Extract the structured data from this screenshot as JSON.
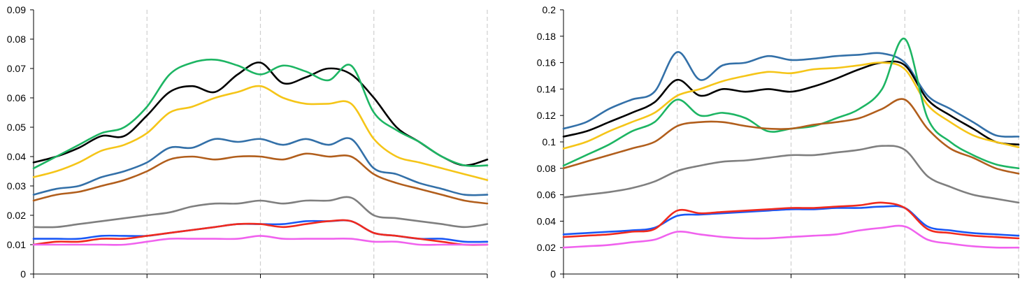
{
  "chart_data": [
    {
      "type": "line",
      "title": "",
      "xlabel": "",
      "ylabel": "",
      "ylim": [
        0,
        0.09
      ],
      "yticks": [
        "0",
        "0.01",
        "0.02",
        "0.03",
        "0.04",
        "0.05",
        "0.06",
        "0.07",
        "0.08",
        "0.09"
      ],
      "ytick_values": [
        0,
        0.01,
        0.02,
        0.03,
        0.04,
        0.05,
        0.06,
        0.07,
        0.08,
        0.09
      ],
      "xlim": [
        0,
        80
      ],
      "x_dividers": [
        20,
        40,
        60
      ],
      "grid": "vertical dashed",
      "x": [
        0,
        4,
        8,
        12,
        16,
        20,
        24,
        28,
        32,
        36,
        40,
        44,
        48,
        52,
        56,
        60,
        64,
        68,
        72,
        76,
        80
      ],
      "series": [
        {
          "color": "#000000",
          "values": [
            0.038,
            0.04,
            0.043,
            0.047,
            0.047,
            0.054,
            0.062,
            0.064,
            0.062,
            0.068,
            0.072,
            0.065,
            0.067,
            0.07,
            0.068,
            0.06,
            0.05,
            0.045,
            0.04,
            0.037,
            0.039
          ]
        },
        {
          "color": "#1DB563",
          "values": [
            0.036,
            0.04,
            0.044,
            0.048,
            0.05,
            0.057,
            0.068,
            0.072,
            0.073,
            0.071,
            0.068,
            0.071,
            0.069,
            0.066,
            0.071,
            0.055,
            0.049,
            0.045,
            0.04,
            0.037,
            0.037
          ]
        },
        {
          "color": "#F5C518",
          "values": [
            0.033,
            0.035,
            0.038,
            0.042,
            0.044,
            0.048,
            0.055,
            0.057,
            0.06,
            0.062,
            0.064,
            0.06,
            0.058,
            0.058,
            0.058,
            0.046,
            0.04,
            0.038,
            0.036,
            0.034,
            0.032
          ]
        },
        {
          "color": "#3370A8",
          "values": [
            0.027,
            0.029,
            0.03,
            0.033,
            0.035,
            0.038,
            0.043,
            0.043,
            0.046,
            0.045,
            0.046,
            0.044,
            0.046,
            0.044,
            0.046,
            0.036,
            0.034,
            0.031,
            0.029,
            0.027,
            0.027
          ]
        },
        {
          "color": "#B15E1C",
          "values": [
            0.025,
            0.027,
            0.028,
            0.03,
            0.032,
            0.035,
            0.039,
            0.04,
            0.039,
            0.04,
            0.04,
            0.039,
            0.041,
            0.04,
            0.04,
            0.034,
            0.031,
            0.029,
            0.027,
            0.025,
            0.024
          ]
        },
        {
          "color": "#7F7F7F",
          "values": [
            0.016,
            0.016,
            0.017,
            0.018,
            0.019,
            0.02,
            0.021,
            0.023,
            0.024,
            0.024,
            0.025,
            0.024,
            0.025,
            0.025,
            0.026,
            0.02,
            0.019,
            0.018,
            0.017,
            0.016,
            0.017
          ]
        },
        {
          "color": "#1A57F5",
          "values": [
            0.012,
            0.012,
            0.012,
            0.013,
            0.013,
            0.013,
            0.014,
            0.015,
            0.016,
            0.017,
            0.017,
            0.017,
            0.018,
            0.018,
            0.018,
            0.014,
            0.013,
            0.012,
            0.012,
            0.011,
            0.011
          ]
        },
        {
          "color": "#F02A1E",
          "values": [
            0.01,
            0.011,
            0.011,
            0.012,
            0.012,
            0.013,
            0.014,
            0.015,
            0.016,
            0.017,
            0.017,
            0.016,
            0.017,
            0.018,
            0.018,
            0.014,
            0.013,
            0.012,
            0.011,
            0.01,
            0.01
          ]
        },
        {
          "color": "#F062EE",
          "values": [
            0.01,
            0.01,
            0.01,
            0.01,
            0.01,
            0.011,
            0.012,
            0.012,
            0.012,
            0.012,
            0.013,
            0.012,
            0.012,
            0.012,
            0.012,
            0.011,
            0.011,
            0.01,
            0.01,
            0.01,
            0.01
          ]
        }
      ]
    },
    {
      "type": "line",
      "title": "",
      "xlabel": "",
      "ylabel": "",
      "ylim": [
        0,
        0.2
      ],
      "yticks": [
        "0",
        "0.02",
        "0.04",
        "0.06",
        "0.08",
        "0.1",
        "0.12",
        "0.14",
        "0.16",
        "0.18",
        "0.2"
      ],
      "ytick_values": [
        0,
        0.02,
        0.04,
        0.06,
        0.08,
        0.1,
        0.12,
        0.14,
        0.16,
        0.18,
        0.2
      ],
      "xlim": [
        0,
        80
      ],
      "x_dividers": [
        20,
        40,
        60
      ],
      "grid": "vertical dashed",
      "x": [
        0,
        4,
        8,
        12,
        16,
        20,
        24,
        28,
        32,
        36,
        40,
        44,
        48,
        52,
        56,
        60,
        64,
        68,
        72,
        76,
        80
      ],
      "series": [
        {
          "color": "#3370A8",
          "values": [
            0.11,
            0.115,
            0.125,
            0.132,
            0.138,
            0.168,
            0.147,
            0.158,
            0.16,
            0.165,
            0.162,
            0.163,
            0.165,
            0.166,
            0.167,
            0.16,
            0.135,
            0.125,
            0.115,
            0.105,
            0.104
          ]
        },
        {
          "color": "#000000",
          "values": [
            0.104,
            0.108,
            0.115,
            0.122,
            0.13,
            0.147,
            0.135,
            0.14,
            0.138,
            0.14,
            0.138,
            0.142,
            0.148,
            0.155,
            0.16,
            0.158,
            0.132,
            0.12,
            0.11,
            0.1,
            0.098
          ]
        },
        {
          "color": "#F5C518",
          "values": [
            0.095,
            0.1,
            0.108,
            0.115,
            0.122,
            0.135,
            0.14,
            0.146,
            0.15,
            0.153,
            0.152,
            0.155,
            0.156,
            0.158,
            0.16,
            0.155,
            0.128,
            0.115,
            0.105,
            0.1,
            0.096
          ]
        },
        {
          "color": "#1DB563",
          "values": [
            0.082,
            0.09,
            0.098,
            0.108,
            0.115,
            0.132,
            0.12,
            0.122,
            0.118,
            0.108,
            0.11,
            0.112,
            0.118,
            0.125,
            0.14,
            0.178,
            0.118,
            0.1,
            0.09,
            0.083,
            0.08
          ]
        },
        {
          "color": "#B15E1C",
          "values": [
            0.08,
            0.085,
            0.09,
            0.095,
            0.1,
            0.112,
            0.115,
            0.115,
            0.112,
            0.11,
            0.11,
            0.113,
            0.115,
            0.118,
            0.125,
            0.132,
            0.11,
            0.095,
            0.088,
            0.08,
            0.076
          ]
        },
        {
          "color": "#7F7F7F",
          "values": [
            0.058,
            0.06,
            0.062,
            0.065,
            0.07,
            0.078,
            0.082,
            0.085,
            0.086,
            0.088,
            0.09,
            0.09,
            0.092,
            0.094,
            0.097,
            0.094,
            0.074,
            0.066,
            0.06,
            0.057,
            0.054
          ]
        },
        {
          "color": "#1A57F5",
          "values": [
            0.03,
            0.031,
            0.032,
            0.033,
            0.035,
            0.044,
            0.045,
            0.046,
            0.047,
            0.048,
            0.049,
            0.049,
            0.05,
            0.05,
            0.051,
            0.05,
            0.036,
            0.033,
            0.031,
            0.03,
            0.029
          ]
        },
        {
          "color": "#F02A1E",
          "values": [
            0.028,
            0.029,
            0.03,
            0.032,
            0.034,
            0.048,
            0.046,
            0.047,
            0.048,
            0.049,
            0.05,
            0.05,
            0.051,
            0.052,
            0.054,
            0.05,
            0.034,
            0.031,
            0.029,
            0.028,
            0.027
          ]
        },
        {
          "color": "#F062EE",
          "values": [
            0.02,
            0.021,
            0.022,
            0.024,
            0.026,
            0.032,
            0.03,
            0.028,
            0.027,
            0.027,
            0.028,
            0.029,
            0.03,
            0.033,
            0.035,
            0.036,
            0.026,
            0.023,
            0.021,
            0.02,
            0.02
          ]
        }
      ]
    }
  ]
}
